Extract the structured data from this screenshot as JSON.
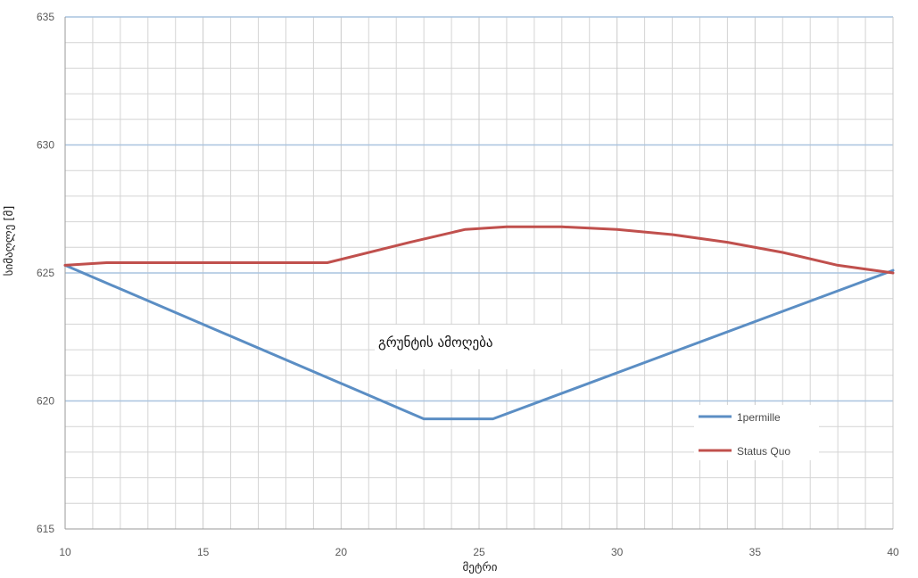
{
  "chart_data": {
    "type": "line",
    "title": "",
    "xlabel": "მეტრი",
    "ylabel": "სიმაღლე [მ]",
    "xlim": [
      10,
      40
    ],
    "ylim": [
      615,
      635
    ],
    "x_ticks": [
      "10",
      "15",
      "20",
      "25",
      "30",
      "35",
      "40"
    ],
    "y_ticks": [
      "615",
      "620",
      "625",
      "630",
      "635"
    ],
    "grid": true,
    "legend_position": "lower-right",
    "annotation": "გრუნტის ამოღება",
    "colors": {
      "1permille": "#5b8ec4",
      "status_quo": "#c0504d",
      "major_grid": "#a9c3df",
      "minor_grid": "#d4d4d4"
    },
    "series": [
      {
        "name": "1permille",
        "x": [
          10,
          23,
          25.5,
          40
        ],
        "y": [
          625.3,
          619.3,
          619.3,
          625.1
        ]
      },
      {
        "name": "Status Quo",
        "x": [
          10,
          11.5,
          19.5,
          22.5,
          24.5,
          26,
          28,
          30,
          32,
          34,
          36,
          38,
          40
        ],
        "y": [
          625.3,
          625.4,
          625.4,
          626.2,
          626.7,
          626.8,
          626.8,
          626.7,
          626.5,
          626.2,
          625.8,
          625.3,
          625.0
        ]
      }
    ]
  }
}
